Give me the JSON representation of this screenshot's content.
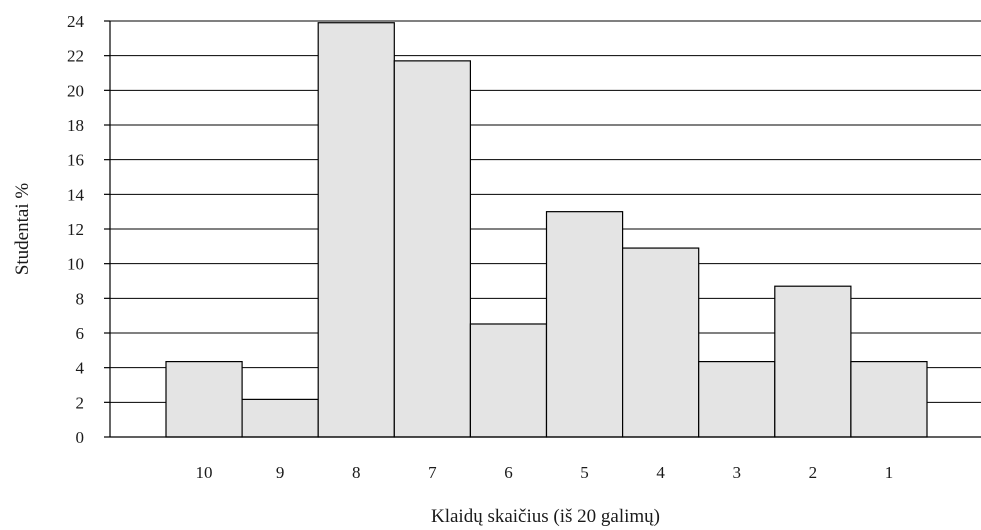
{
  "chart_data": {
    "type": "bar",
    "categories": [
      "10",
      "9",
      "8",
      "7",
      "6",
      "5",
      "4",
      "3",
      "2",
      "1"
    ],
    "values": [
      4.35,
      2.17,
      23.9,
      21.7,
      6.52,
      13.0,
      10.9,
      4.35,
      8.7,
      4.35
    ],
    "xlabel": "Klaidų skaičius (iš 20 galimų)",
    "ylabel": "Studentai %",
    "ylim": [
      0,
      24
    ],
    "yticks": [
      "0",
      "2",
      "4",
      "6",
      "8",
      "10",
      "12",
      "14",
      "16",
      "18",
      "20",
      "22",
      "24"
    ],
    "grid": true,
    "colors": {
      "bar_fill": "#e4e4e4",
      "bar_stroke": "#000000"
    }
  }
}
